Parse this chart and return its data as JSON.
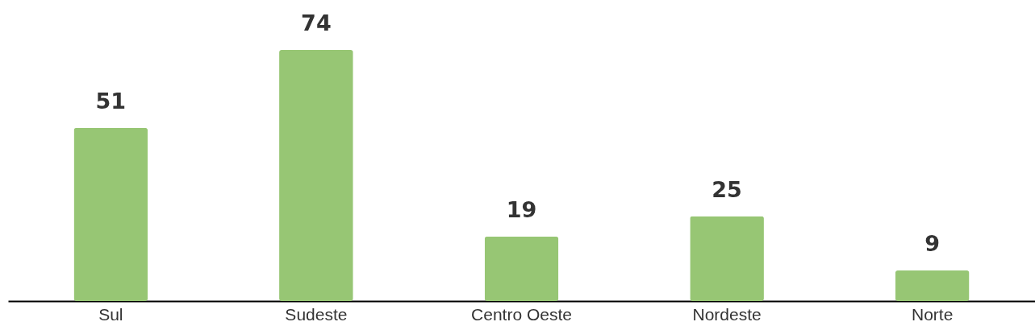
{
  "chart_data": {
    "type": "bar",
    "categories": [
      "Sul",
      "Sudeste",
      "Centro Oeste",
      "Nordeste",
      "Norte"
    ],
    "values": [
      51,
      74,
      19,
      25,
      9
    ],
    "color": "#97c674",
    "data_labels": true
  }
}
